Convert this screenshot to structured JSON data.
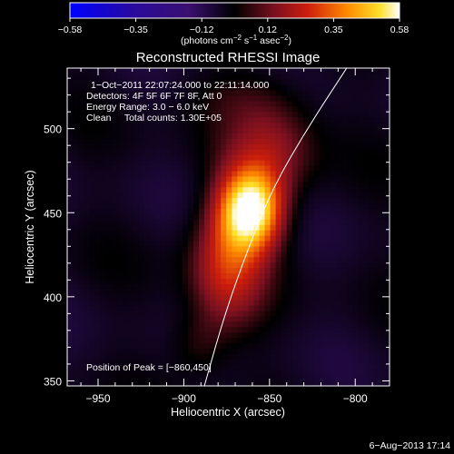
{
  "colorbar": {
    "ticks": [
      "−0.58",
      "−0.35",
      "−0.12",
      "0.12",
      "0.35",
      "0.58"
    ],
    "unit_label": "(photons cm",
    "unit_exp1": "−2",
    "unit_mid": " s",
    "unit_exp2": "−1",
    "unit_end": " asec",
    "unit_exp3": "−2",
    "unit_close": ")",
    "range": [
      -0.58,
      0.58
    ],
    "colors": [
      "#0000ff",
      "#3a0a8a",
      "#4b1270",
      "#000000",
      "#7a1230",
      "#d2200c",
      "#ff8a00",
      "#ffe02a",
      "#ffffff"
    ]
  },
  "chart_data": {
    "type": "heatmap",
    "title": "Reconstructed RHESSI Image",
    "xlabel": "Heliocentric X (arcsec)",
    "ylabel": "Heliocentric Y (arcsec)",
    "xlim": [
      -968,
      -780
    ],
    "ylim": [
      347,
      536
    ],
    "x_ticks": [
      {
        "value": -950,
        "label": "−950"
      },
      {
        "value": -900,
        "label": "−900"
      },
      {
        "value": -850,
        "label": "−850"
      },
      {
        "value": -800,
        "label": "−800"
      }
    ],
    "y_ticks": [
      {
        "value": 350,
        "label": "350"
      },
      {
        "value": 400,
        "label": "400"
      },
      {
        "value": 450,
        "label": "450"
      },
      {
        "value": 500,
        "label": "500"
      }
    ],
    "annotations": [
      "1−Oct−2011 22:07:24.000 to 22:11:14.000",
      "Detectors: 4F 5F 6F 7F 8F, Att 0",
      "Energy Range: 3.0 − 6.0 keV",
      "Clean     Total counts: 1.30E+05"
    ],
    "peak_label": "Position of Peak = [−860,450]",
    "peak": {
      "x": -860,
      "y": 450,
      "value": 0.58
    },
    "limb_curve": [
      [
        -888,
        347
      ],
      [
        -876,
        390
      ],
      [
        -862,
        430
      ],
      [
        -848,
        465
      ],
      [
        -828,
        500
      ],
      [
        -805,
        536
      ]
    ],
    "blobs": [
      {
        "x": -861,
        "y": 452,
        "sx": 13,
        "sy": 17,
        "amp": 0.62
      },
      {
        "x": -875,
        "y": 418,
        "sx": 15,
        "sy": 26,
        "amp": 0.28
      },
      {
        "x": -848,
        "y": 490,
        "sx": 18,
        "sy": 22,
        "amp": 0.18
      },
      {
        "x": -892,
        "y": 372,
        "sx": 12,
        "sy": 14,
        "amp": 0.1
      },
      {
        "x": -868,
        "y": 520,
        "sx": 25,
        "sy": 12,
        "amp": 0.06
      }
    ],
    "background": {
      "level": -0.05,
      "ripple": 0.05
    }
  },
  "footer": {
    "date": "6−Aug−2013 17:14"
  }
}
